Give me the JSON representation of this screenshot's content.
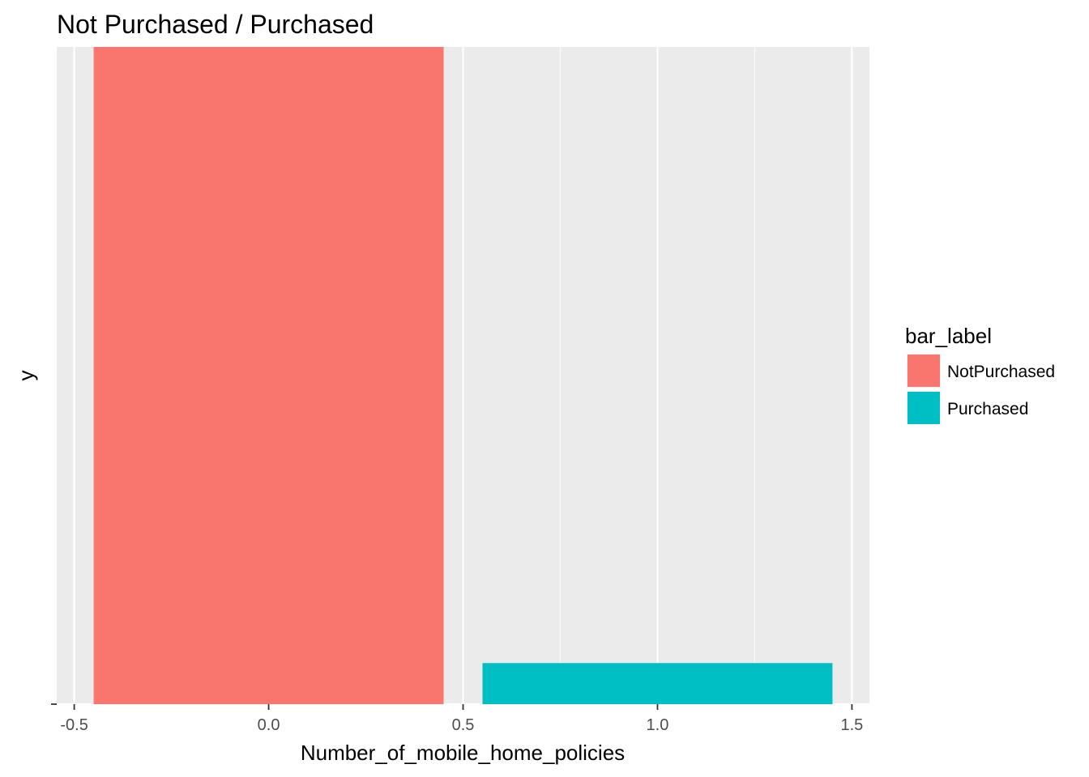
{
  "chart_data": {
    "type": "bar",
    "title": "Not Purchased /  Purchased",
    "xlabel": "Number_of_mobile_home_policies",
    "ylabel": "y",
    "xlim": [
      -0.545,
      1.545
    ],
    "x_ticks": [
      -0.5,
      0.0,
      0.5,
      1.0,
      1.5
    ],
    "x_tick_labels": [
      "-0.5",
      "0.0",
      "0.5",
      "1.0",
      "1.5"
    ],
    "y_tick_labels": [
      ""
    ],
    "ylim": [
      0,
      1
    ],
    "grid": true,
    "legend": {
      "title": "bar_label",
      "position": "right",
      "entries": [
        "NotPurchased",
        "Purchased"
      ]
    },
    "series": [
      {
        "name": "NotPurchased",
        "x": 0,
        "width": 0.9,
        "value": 1.0,
        "color": "#F8766D"
      },
      {
        "name": "Purchased",
        "x": 1,
        "width": 0.9,
        "value": 0.0625,
        "color": "#00BFC4"
      }
    ],
    "colors": {
      "panel_background": "#EBEBEB",
      "grid_major": "#FFFFFF"
    }
  }
}
